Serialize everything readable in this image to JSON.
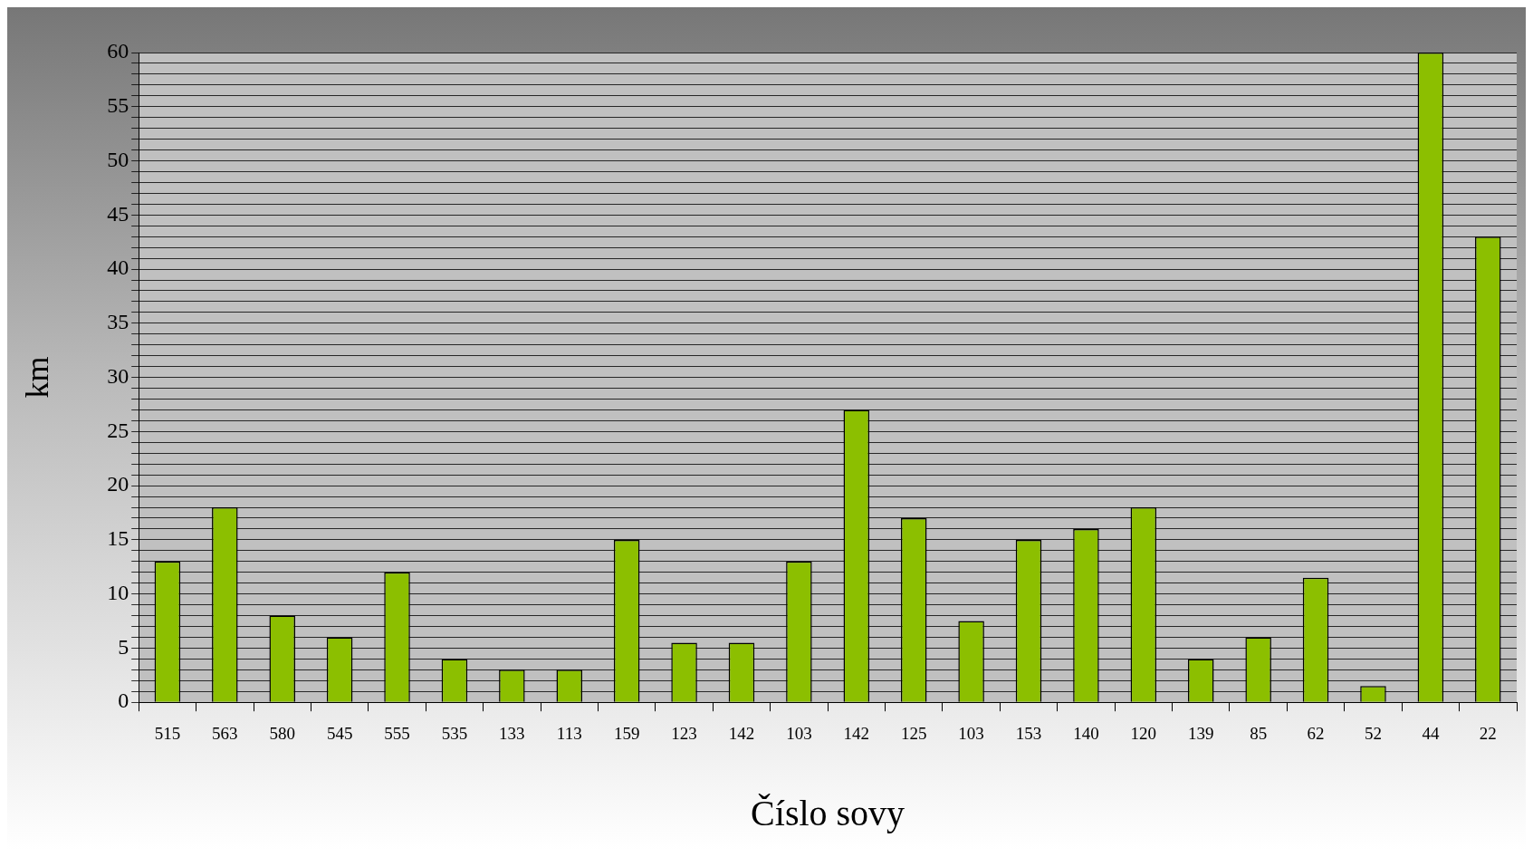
{
  "chart_data": {
    "type": "bar",
    "xlabel": "Číslo sovy",
    "ylabel": "km",
    "categories": [
      "515",
      "563",
      "580",
      "545",
      "555",
      "535",
      "133",
      "113",
      "159",
      "123",
      "142",
      "103",
      "142",
      "125",
      "103",
      "153",
      "140",
      "120",
      "139",
      "85",
      "62",
      "52",
      "44",
      "22"
    ],
    "values": [
      13,
      18,
      8,
      6,
      12,
      4,
      3,
      3,
      15,
      5.5,
      5.5,
      13,
      27,
      17,
      7.5,
      15,
      16,
      18,
      4,
      6,
      11.5,
      1.5,
      60,
      43
    ],
    "color": "#8cbf00",
    "ylim": [
      0,
      60
    ],
    "yticks": [
      0,
      {
        "value": 1,
        "label": null
      },
      {
        "value": 2,
        "label": null
      },
      {
        "value": 3,
        "label": null
      },
      {
        "value": 4,
        "label": null
      },
      5,
      {
        "value": 6,
        "label": null
      },
      {
        "value": 7,
        "label": null
      },
      {
        "value": 8,
        "label": null
      },
      {
        "value": 9,
        "label": null
      },
      10,
      {
        "value": 11,
        "label": null
      },
      {
        "value": 12,
        "label": null
      },
      {
        "value": 13,
        "label": null
      },
      {
        "value": 14,
        "label": null
      },
      15,
      {
        "value": 16,
        "label": null
      },
      {
        "value": 17,
        "label": null
      },
      {
        "value": 18,
        "label": null
      },
      {
        "value": 19,
        "label": null
      },
      20,
      {
        "value": 21,
        "label": null
      },
      {
        "value": 22,
        "label": null
      },
      {
        "value": 23,
        "label": null
      },
      {
        "value": 24,
        "label": null
      },
      25,
      {
        "value": 26,
        "label": null
      },
      {
        "value": 27,
        "label": null
      },
      {
        "value": 28,
        "label": null
      },
      {
        "value": 29,
        "label": null
      },
      30,
      {
        "value": 31,
        "label": null
      },
      {
        "value": 32,
        "label": null
      },
      {
        "value": 33,
        "label": null
      },
      {
        "value": 34,
        "label": null
      },
      35,
      {
        "value": 36,
        "label": null
      },
      {
        "value": 37,
        "label": null
      },
      {
        "value": 38,
        "label": null
      },
      {
        "value": 39,
        "label": null
      },
      40,
      {
        "value": 41,
        "label": null
      },
      {
        "value": 42,
        "label": null
      },
      {
        "value": 43,
        "label": null
      },
      {
        "value": 44,
        "label": null
      },
      45,
      {
        "value": 46,
        "label": null
      },
      {
        "value": 47,
        "label": null
      },
      {
        "value": 48,
        "label": null
      },
      {
        "value": 49,
        "label": null
      },
      50,
      {
        "value": 51,
        "label": null
      },
      {
        "value": 52,
        "label": null
      },
      {
        "value": 53,
        "label": null
      },
      {
        "value": 54,
        "label": null
      },
      55,
      {
        "value": 56,
        "label": null
      },
      {
        "value": 57,
        "label": null
      },
      {
        "value": 58,
        "label": null
      },
      {
        "value": 59,
        "label": null
      },
      60
    ],
    "grid": "y",
    "legend": false
  }
}
